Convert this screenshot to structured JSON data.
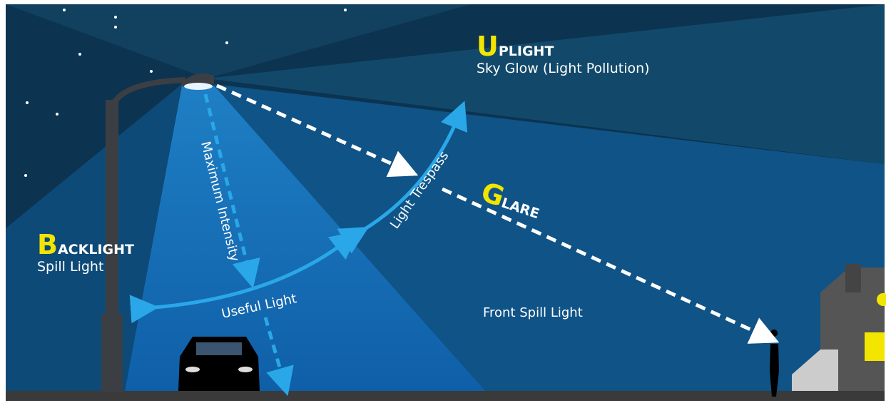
{
  "labels": {
    "uplight": {
      "initial": "U",
      "rest": "PLIGHT",
      "subtitle": "Sky Glow (Light Pollution)"
    },
    "glare": {
      "initial": "G",
      "rest": "LARE"
    },
    "backlight": {
      "initial": "B",
      "rest": "ACKLIGHT",
      "subtitle": "Spill Light"
    },
    "maximum_intensity": "Maximum Intensity",
    "light_trespass": "Light Trespass",
    "useful_light": "Useful Light",
    "front_spill_light": "Front Spill Light"
  }
}
